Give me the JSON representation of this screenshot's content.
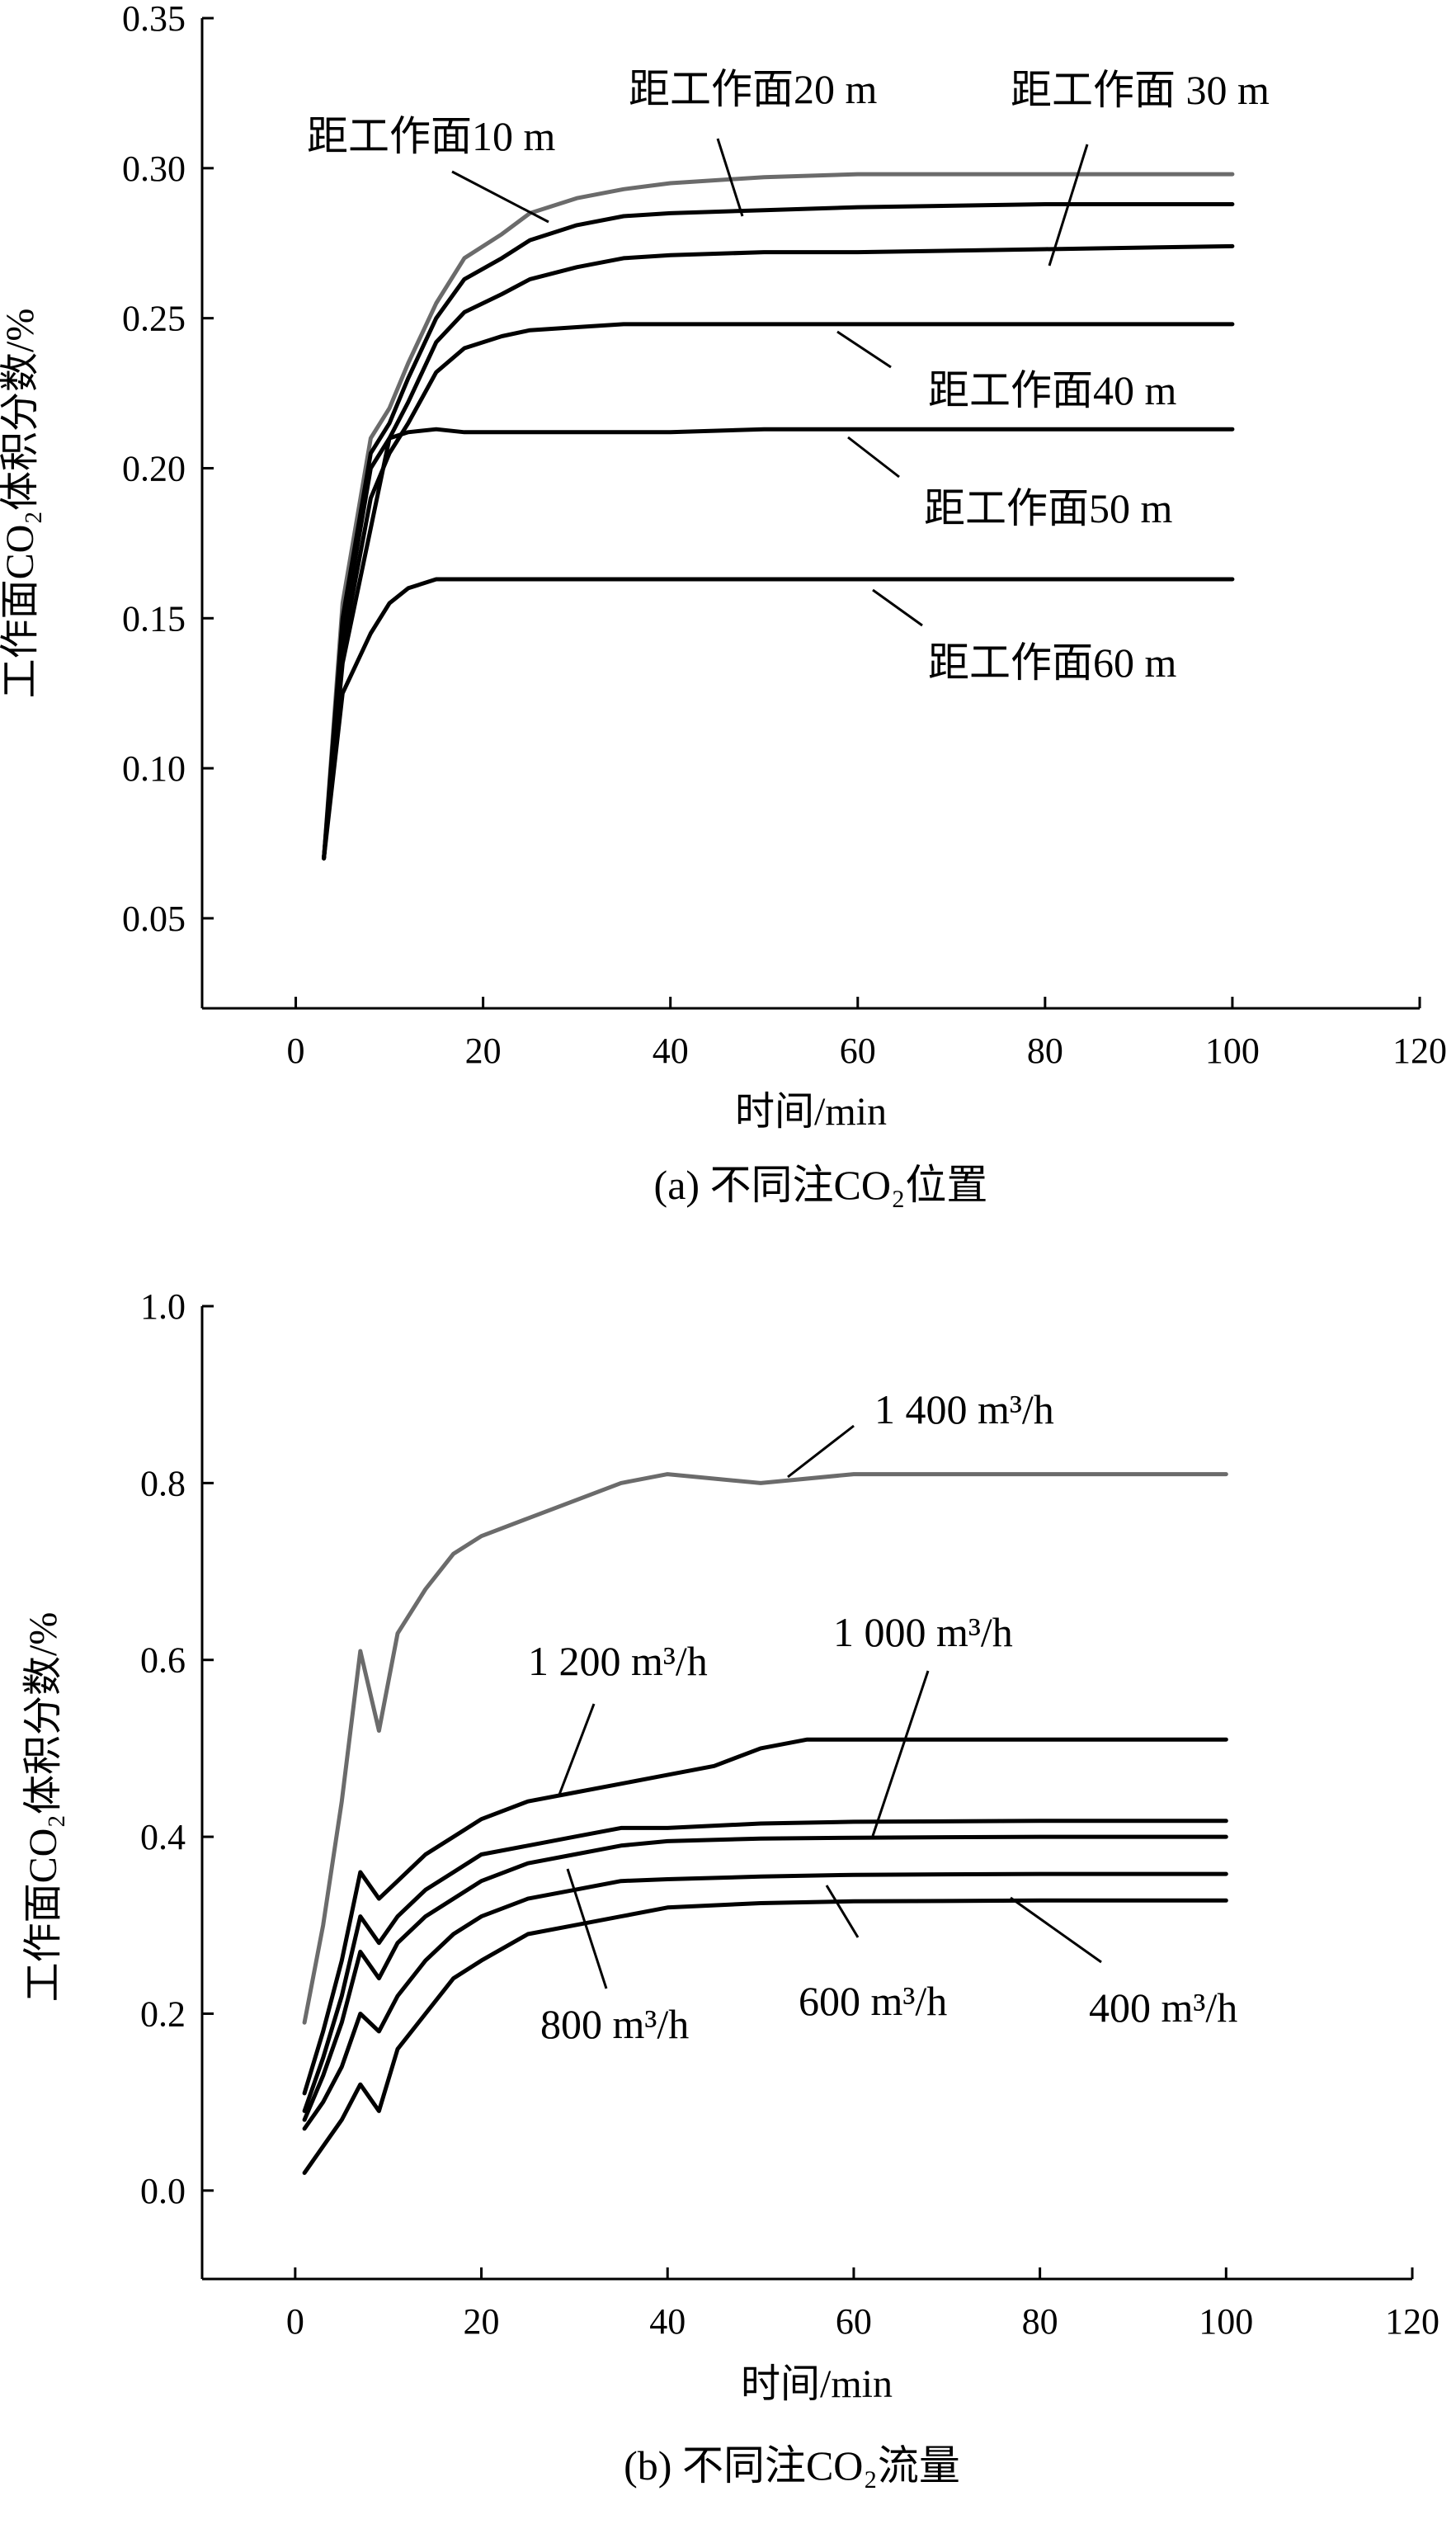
{
  "chart_data": [
    {
      "type": "line",
      "caption": "(a) 不同注CO₂位置",
      "xlabel": "时间/min",
      "ylabel": "工作面CO₂体积分数/%",
      "xlim": [
        -10,
        120
      ],
      "ylim": [
        0.02,
        0.35
      ],
      "xticks": [
        0,
        20,
        40,
        60,
        80,
        100,
        120
      ],
      "yticks": [
        0.05,
        0.1,
        0.15,
        0.2,
        0.25,
        0.3,
        0.35
      ],
      "xtick_labels": [
        "0",
        "20",
        "40",
        "60",
        "80",
        "100",
        "120"
      ],
      "ytick_labels": [
        "0.05",
        "0.10",
        "0.15",
        "0.20",
        "0.25",
        "0.30",
        "0.35"
      ],
      "grid": false,
      "legend": "none",
      "series": [
        {
          "name": "距工作面10 m",
          "color": "#6b6b6b",
          "x": [
            3,
            5,
            8,
            10,
            12,
            15,
            18,
            22,
            25,
            30,
            35,
            40,
            50,
            60,
            80,
            100
          ],
          "y": [
            0.07,
            0.155,
            0.21,
            0.22,
            0.235,
            0.255,
            0.27,
            0.278,
            0.285,
            0.29,
            0.293,
            0.295,
            0.297,
            0.298,
            0.298,
            0.298
          ]
        },
        {
          "name": "距工作面20 m",
          "color": "#000000",
          "x": [
            3,
            5,
            8,
            10,
            12,
            15,
            18,
            22,
            25,
            30,
            35,
            40,
            50,
            60,
            80,
            100
          ],
          "y": [
            0.07,
            0.15,
            0.205,
            0.215,
            0.23,
            0.25,
            0.263,
            0.27,
            0.276,
            0.281,
            0.284,
            0.285,
            0.286,
            0.287,
            0.288,
            0.288
          ]
        },
        {
          "name": "距工作面 30 m",
          "color": "#000000",
          "x": [
            3,
            5,
            8,
            10,
            12,
            15,
            18,
            22,
            25,
            30,
            35,
            40,
            50,
            60,
            80,
            100
          ],
          "y": [
            0.07,
            0.145,
            0.2,
            0.21,
            0.222,
            0.242,
            0.252,
            0.258,
            0.263,
            0.267,
            0.27,
            0.271,
            0.272,
            0.272,
            0.273,
            0.274
          ]
        },
        {
          "name": "距工作面40 m",
          "color": "#000000",
          "x": [
            3,
            5,
            8,
            10,
            12,
            15,
            18,
            22,
            25,
            30,
            35,
            40,
            50,
            60,
            80,
            100
          ],
          "y": [
            0.07,
            0.14,
            0.19,
            0.205,
            0.215,
            0.232,
            0.24,
            0.244,
            0.246,
            0.247,
            0.248,
            0.248,
            0.248,
            0.248,
            0.248,
            0.248
          ]
        },
        {
          "name": "距工作面50 m",
          "color": "#000000",
          "x": [
            3,
            5,
            8,
            10,
            12,
            15,
            18,
            22,
            25,
            30,
            35,
            40,
            50,
            60,
            80,
            100
          ],
          "y": [
            0.07,
            0.135,
            0.18,
            0.21,
            0.212,
            0.213,
            0.212,
            0.212,
            0.212,
            0.212,
            0.212,
            0.212,
            0.213,
            0.213,
            0.213,
            0.213
          ]
        },
        {
          "name": "距工作面60 m",
          "color": "#000000",
          "x": [
            3,
            5,
            8,
            10,
            12,
            15,
            18,
            22,
            25,
            30,
            35,
            40,
            50,
            60,
            80,
            100
          ],
          "y": [
            0.07,
            0.125,
            0.145,
            0.155,
            0.16,
            0.163,
            0.163,
            0.163,
            0.163,
            0.163,
            0.163,
            0.163,
            0.163,
            0.163,
            0.163,
            0.163
          ]
        }
      ],
      "annotations": [
        {
          "text": "距工作面10 m",
          "series": 0
        },
        {
          "text": "距工作面20 m",
          "series": 1
        },
        {
          "text": "距工作面 30 m",
          "series": 2
        },
        {
          "text": "距工作面40 m",
          "series": 3
        },
        {
          "text": "距工作面50 m",
          "series": 4
        },
        {
          "text": "距工作面60 m",
          "series": 5
        }
      ]
    },
    {
      "type": "line",
      "caption": "(b) 不同注CO₂流量",
      "xlabel": "时间/min",
      "ylabel": "工作面CO₂体积分数/%",
      "xlim": [
        -10,
        120
      ],
      "ylim": [
        -0.1,
        1.0
      ],
      "xticks": [
        0,
        20,
        40,
        60,
        80,
        100,
        120
      ],
      "yticks": [
        0.0,
        0.2,
        0.4,
        0.6,
        0.8,
        1.0
      ],
      "xtick_labels": [
        "0",
        "20",
        "40",
        "60",
        "80",
        "100",
        "120"
      ],
      "ytick_labels": [
        "0.0",
        "0.2",
        "0.4",
        "0.6",
        "0.8",
        "1.0"
      ],
      "grid": false,
      "legend": "none",
      "series": [
        {
          "name": "1 400 m³/h",
          "color": "#6b6b6b",
          "x": [
            1,
            3,
            5,
            7,
            9,
            11,
            14,
            17,
            20,
            25,
            30,
            35,
            40,
            50,
            60,
            80,
            100
          ],
          "y": [
            0.19,
            0.3,
            0.44,
            0.61,
            0.52,
            0.63,
            0.68,
            0.72,
            0.74,
            0.76,
            0.78,
            0.8,
            0.81,
            0.8,
            0.81,
            0.81,
            0.81
          ]
        },
        {
          "name": "1 200 m³/h",
          "color": "#000000",
          "x": [
            1,
            3,
            5,
            7,
            9,
            11,
            14,
            17,
            20,
            25,
            30,
            35,
            40,
            45,
            50,
            55,
            60,
            80,
            100
          ],
          "y": [
            0.11,
            0.18,
            0.26,
            0.36,
            0.33,
            0.35,
            0.38,
            0.4,
            0.42,
            0.44,
            0.45,
            0.46,
            0.47,
            0.48,
            0.5,
            0.51,
            0.51,
            0.51,
            0.51
          ]
        },
        {
          "name": "1 000 m³/h",
          "color": "#000000",
          "x": [
            1,
            3,
            5,
            7,
            9,
            11,
            14,
            17,
            20,
            25,
            30,
            35,
            40,
            50,
            60,
            80,
            100
          ],
          "y": [
            0.09,
            0.15,
            0.22,
            0.31,
            0.28,
            0.31,
            0.34,
            0.36,
            0.38,
            0.39,
            0.4,
            0.41,
            0.41,
            0.415,
            0.417,
            0.418,
            0.418
          ]
        },
        {
          "name": "800 m³/h",
          "color": "#000000",
          "x": [
            1,
            3,
            5,
            7,
            9,
            11,
            14,
            17,
            20,
            25,
            30,
            35,
            40,
            50,
            60,
            80,
            100
          ],
          "y": [
            0.08,
            0.13,
            0.19,
            0.27,
            0.24,
            0.28,
            0.31,
            0.33,
            0.35,
            0.37,
            0.38,
            0.39,
            0.395,
            0.398,
            0.399,
            0.4,
            0.4
          ]
        },
        {
          "name": "600 m³/h",
          "color": "#000000",
          "x": [
            1,
            3,
            5,
            7,
            9,
            11,
            14,
            17,
            20,
            25,
            30,
            35,
            40,
            50,
            60,
            80,
            100
          ],
          "y": [
            0.07,
            0.1,
            0.14,
            0.2,
            0.18,
            0.22,
            0.26,
            0.29,
            0.31,
            0.33,
            0.34,
            0.35,
            0.352,
            0.355,
            0.357,
            0.358,
            0.358
          ]
        },
        {
          "name": "400 m³/h",
          "color": "#000000",
          "x": [
            1,
            3,
            5,
            7,
            9,
            11,
            14,
            17,
            20,
            25,
            30,
            35,
            40,
            50,
            60,
            80,
            100
          ],
          "y": [
            0.02,
            0.05,
            0.08,
            0.12,
            0.09,
            0.16,
            0.2,
            0.24,
            0.26,
            0.29,
            0.3,
            0.31,
            0.32,
            0.325,
            0.327,
            0.328,
            0.328
          ]
        }
      ],
      "annotations": [
        {
          "text": "1 400 m³/h",
          "series": 0
        },
        {
          "text": "1 200 m³/h",
          "series": 1
        },
        {
          "text": "1 000 m³/h",
          "series": 2
        },
        {
          "text": "800 m³/h",
          "series": 3
        },
        {
          "text": "600 m³/h",
          "series": 4
        },
        {
          "text": "400 m³/h",
          "series": 5
        }
      ]
    }
  ]
}
